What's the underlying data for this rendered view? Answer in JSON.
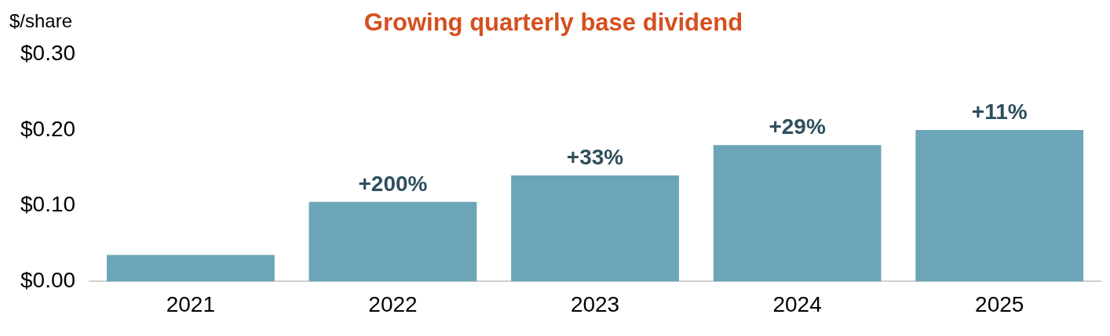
{
  "chart_data": {
    "type": "bar",
    "title": "Growing quarterly base dividend",
    "ylabel": "$/share",
    "categories": [
      "2021",
      "2022",
      "2023",
      "2024",
      "2025"
    ],
    "values": [
      0.035,
      0.105,
      0.14,
      0.18,
      0.2
    ],
    "annotations": [
      {
        "text": "+200%",
        "x": "2022",
        "y": 0.105
      },
      {
        "text": "+33%",
        "x": "2023",
        "y": 0.14
      },
      {
        "text": "+29%",
        "x": "2024",
        "y": 0.18
      },
      {
        "text": "+11%",
        "x": "2025",
        "y": 0.2
      }
    ],
    "color": "#6ca5b8",
    "ylim": [
      0,
      0.3
    ],
    "yticks": [
      {
        "value": 0,
        "label": "$0.00"
      },
      {
        "value": 0.1,
        "label": "$0.10"
      },
      {
        "value": 0.2,
        "label": "$0.20"
      },
      {
        "value": 0.3,
        "label": "$0.30"
      }
    ],
    "grid": false,
    "legend": false
  }
}
